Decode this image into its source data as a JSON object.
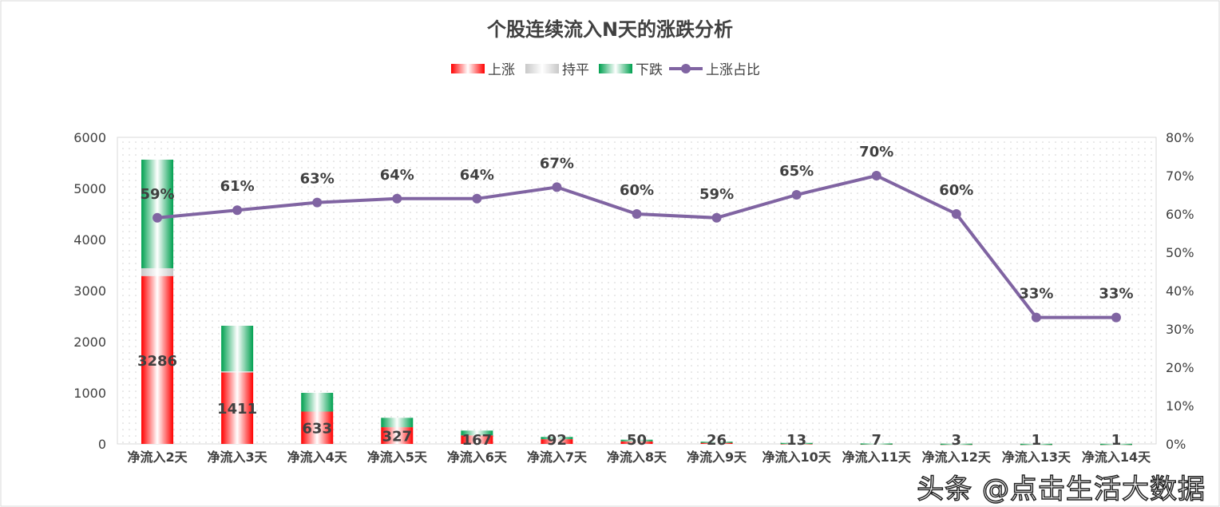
{
  "chart_data": {
    "type": "bar",
    "stacked": true,
    "title": "个股连续流入N天的涨跌分析",
    "categories": [
      "净流入2天",
      "净流入3天",
      "净流入4天",
      "净流入5天",
      "净流入6天",
      "净流入7天",
      "净流入8天",
      "净流入9天",
      "净流入10天",
      "净流入11天",
      "净流入12天",
      "净流入13天",
      "净流入14天"
    ],
    "series": [
      {
        "name": "上涨",
        "type": "bar",
        "color": "#ff0000",
        "values": [
          3286,
          1411,
          633,
          327,
          167,
          92,
          50,
          26,
          13,
          7,
          3,
          1,
          1
        ]
      },
      {
        "name": "持平",
        "type": "bar",
        "color": "#d0d0d0",
        "values": [
          152,
          10,
          0,
          0,
          0,
          0,
          0,
          0,
          0,
          0,
          0,
          0,
          0
        ]
      },
      {
        "name": "下跌",
        "type": "bar",
        "color": "#00a050",
        "values": [
          2125,
          892,
          367,
          184,
          94,
          45,
          33,
          18,
          7,
          3,
          2,
          2,
          2
        ]
      },
      {
        "name": "上涨占比",
        "type": "line",
        "axis": "right",
        "color": "#8064a2",
        "values": [
          59,
          61,
          63,
          64,
          64,
          67,
          60,
          59,
          65,
          70,
          60,
          33,
          33
        ],
        "labels": [
          "59%",
          "61%",
          "63%",
          "64%",
          "64%",
          "67%",
          "60%",
          "59%",
          "65%",
          "70%",
          "60%",
          "33%",
          "33%"
        ]
      }
    ],
    "ylim": [
      0,
      6000
    ],
    "yticks": [
      "0",
      "1000",
      "2000",
      "3000",
      "4000",
      "5000",
      "6000"
    ],
    "y2lim": [
      0,
      80
    ],
    "y2ticks": [
      "0%",
      "10%",
      "20%",
      "30%",
      "40%",
      "50%",
      "60%",
      "70%",
      "80%"
    ],
    "grid": false,
    "legend": "top"
  },
  "watermark": "头条 @点击生活大数据"
}
